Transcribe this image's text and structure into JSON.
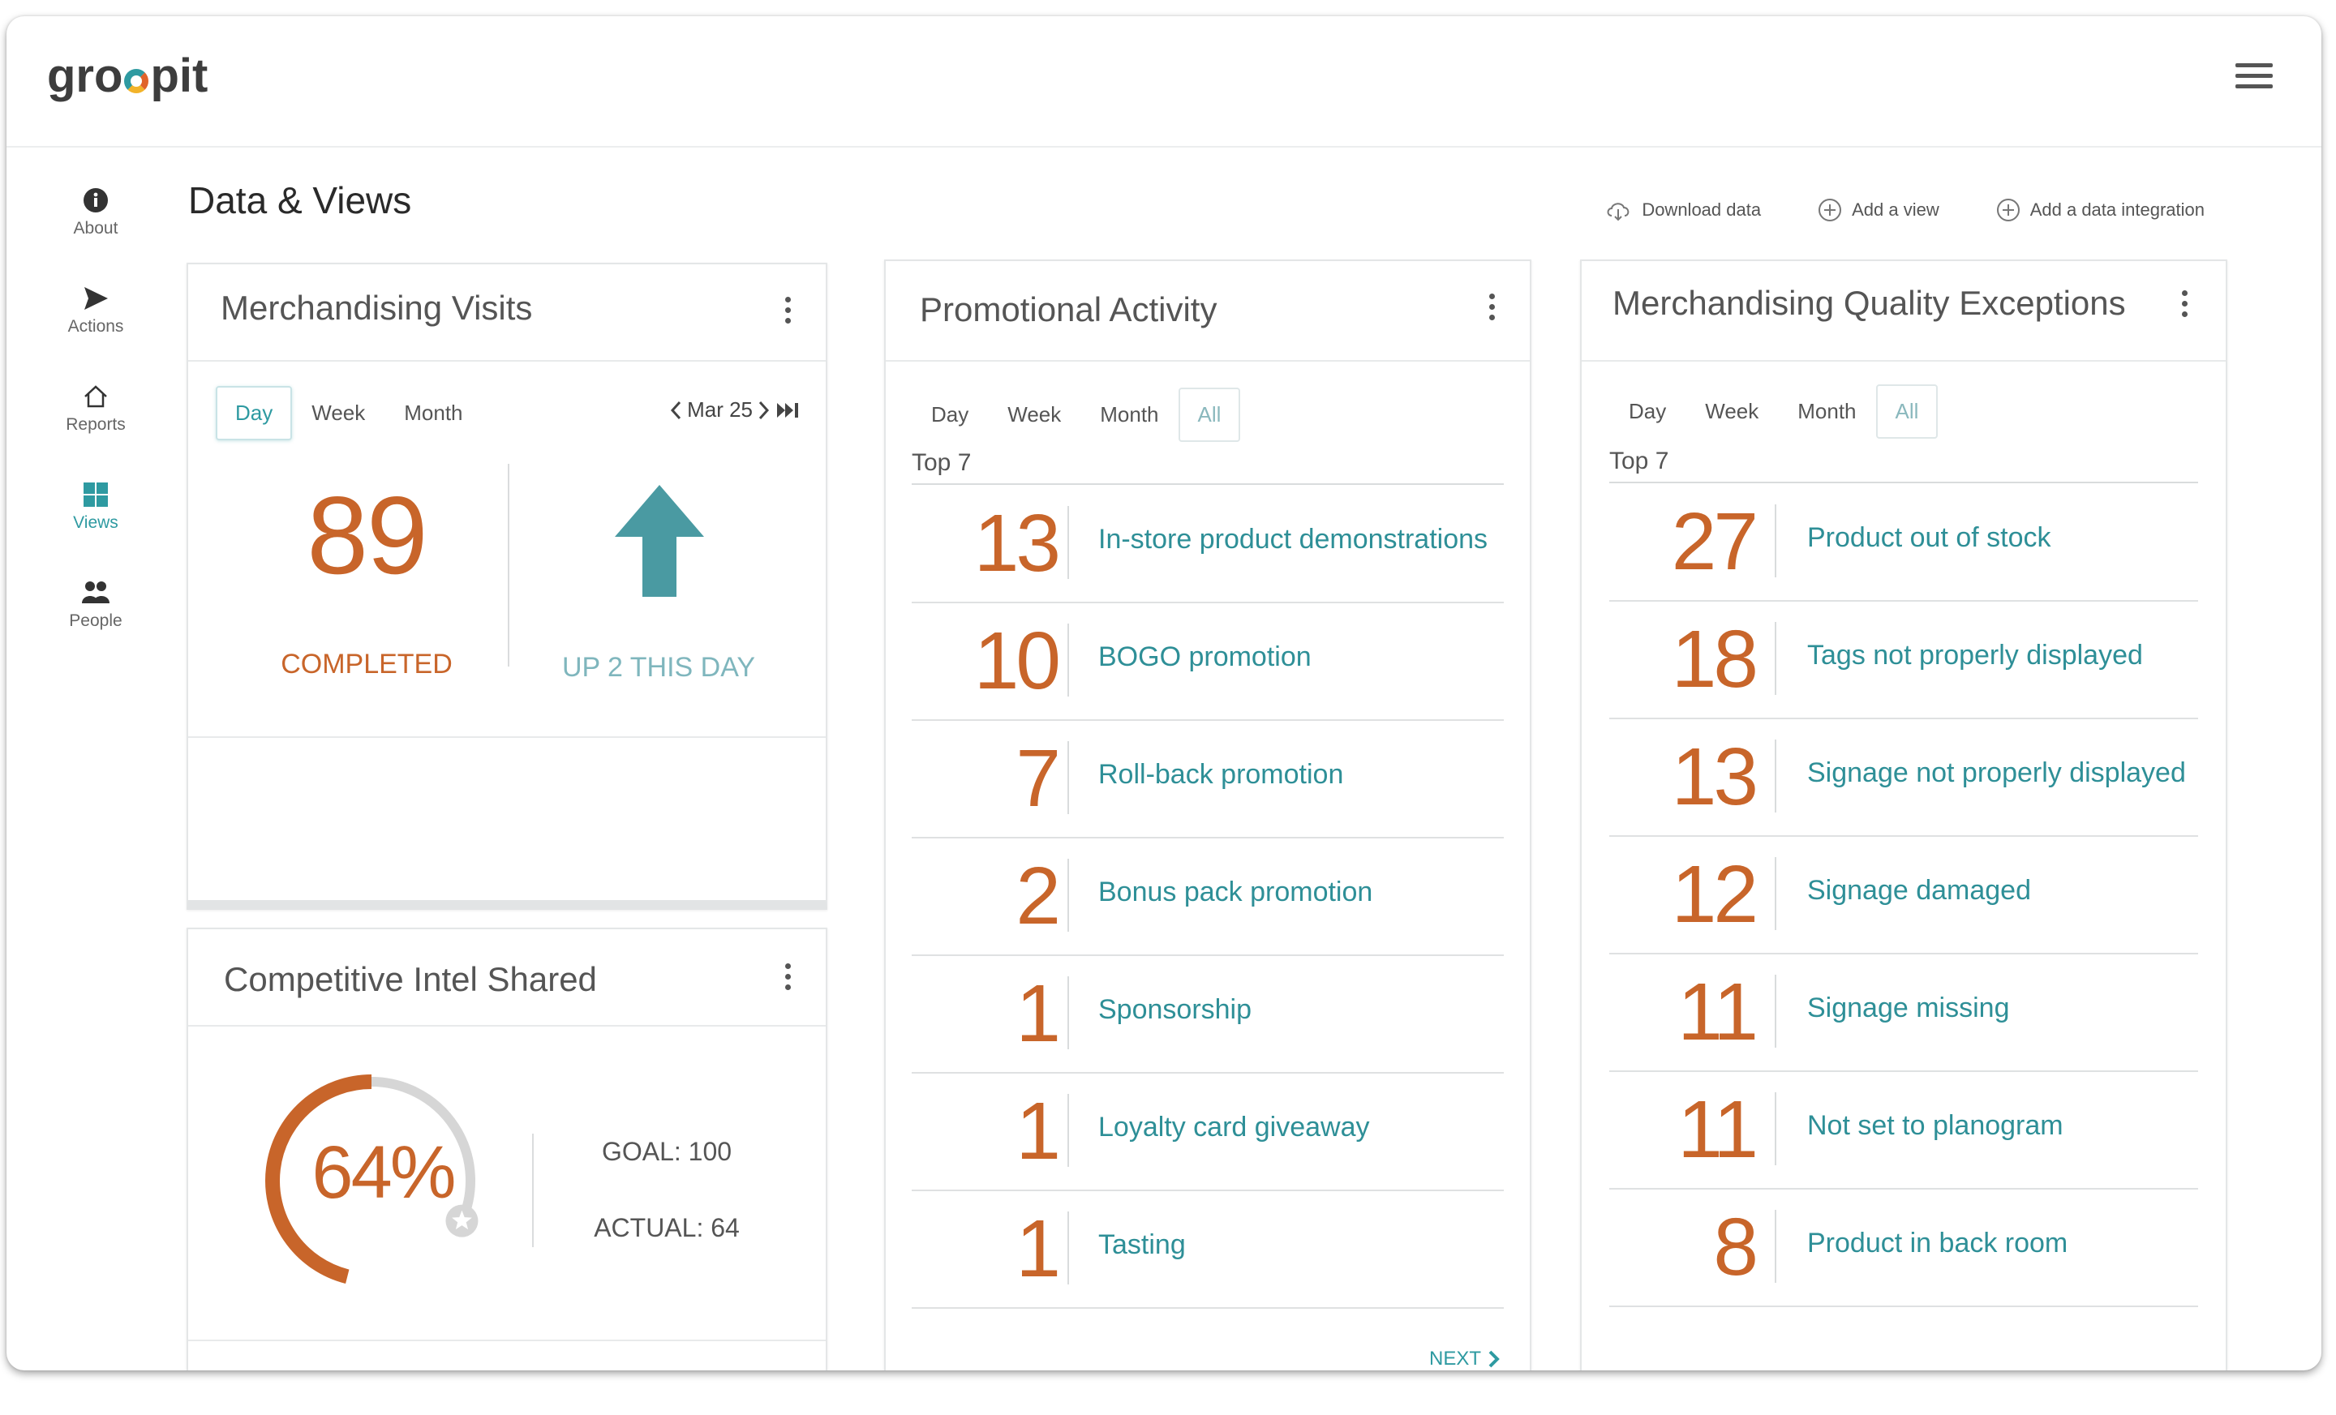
{
  "app": {
    "logo": "groopit",
    "logo_colors": {
      "teal": "#2e9aa1",
      "orange": "#e0632a",
      "yellow": "#f2b32a"
    }
  },
  "sidebar": {
    "items": [
      {
        "label": "About",
        "icon": "info-icon"
      },
      {
        "label": "Actions",
        "icon": "send-icon"
      },
      {
        "label": "Reports",
        "icon": "home-icon"
      },
      {
        "label": "Views",
        "icon": "grid-icon",
        "active": true
      },
      {
        "label": "People",
        "icon": "people-icon"
      }
    ]
  },
  "page": {
    "title": "Data & Views"
  },
  "actions": {
    "download": "Download data",
    "add_view": "Add a view",
    "add_integration": "Add a data integration"
  },
  "colors": {
    "accent": "#2e9aa1",
    "number": "#c8652a"
  },
  "visits": {
    "title": "Merchandising Visits",
    "periods": [
      "Day",
      "Week",
      "Month"
    ],
    "selected": "Day",
    "date": "Mar 25",
    "value": "89",
    "value_label": "COMPLETED",
    "trend_label": "UP 2 THIS DAY"
  },
  "intel": {
    "title": "Competitive Intel Shared",
    "percent_text": "64%",
    "percent": 0.64,
    "goal": "GOAL: 100",
    "actual": "ACTUAL: 64"
  },
  "promo": {
    "title": "Promotional Activity",
    "periods": [
      "Day",
      "Week",
      "Month",
      "All"
    ],
    "top_label": "Top 7",
    "rows": [
      {
        "num": "13",
        "label": "In-store product demonstrations"
      },
      {
        "num": "10",
        "label": "BOGO promotion"
      },
      {
        "num": "7",
        "label": "Roll-back promotion"
      },
      {
        "num": "2",
        "label": "Bonus pack promotion"
      },
      {
        "num": "1",
        "label": "Sponsorship"
      },
      {
        "num": "1",
        "label": "Loyalty card giveaway"
      },
      {
        "num": "1",
        "label": "Tasting"
      }
    ],
    "next": "NEXT"
  },
  "quality": {
    "title": "Merchandising Quality Exceptions",
    "periods": [
      "Day",
      "Week",
      "Month",
      "All"
    ],
    "top_label": "Top 7",
    "rows": [
      {
        "num": "27",
        "label": "Product out of stock"
      },
      {
        "num": "18",
        "label": "Tags not properly displayed"
      },
      {
        "num": "13",
        "label": "Signage not properly displayed"
      },
      {
        "num": "12",
        "label": "Signage damaged"
      },
      {
        "num": "11",
        "label": "Signage missing"
      },
      {
        "num": "11",
        "label": "Not set to planogram"
      },
      {
        "num": "8",
        "label": "Product in back room"
      }
    ]
  }
}
